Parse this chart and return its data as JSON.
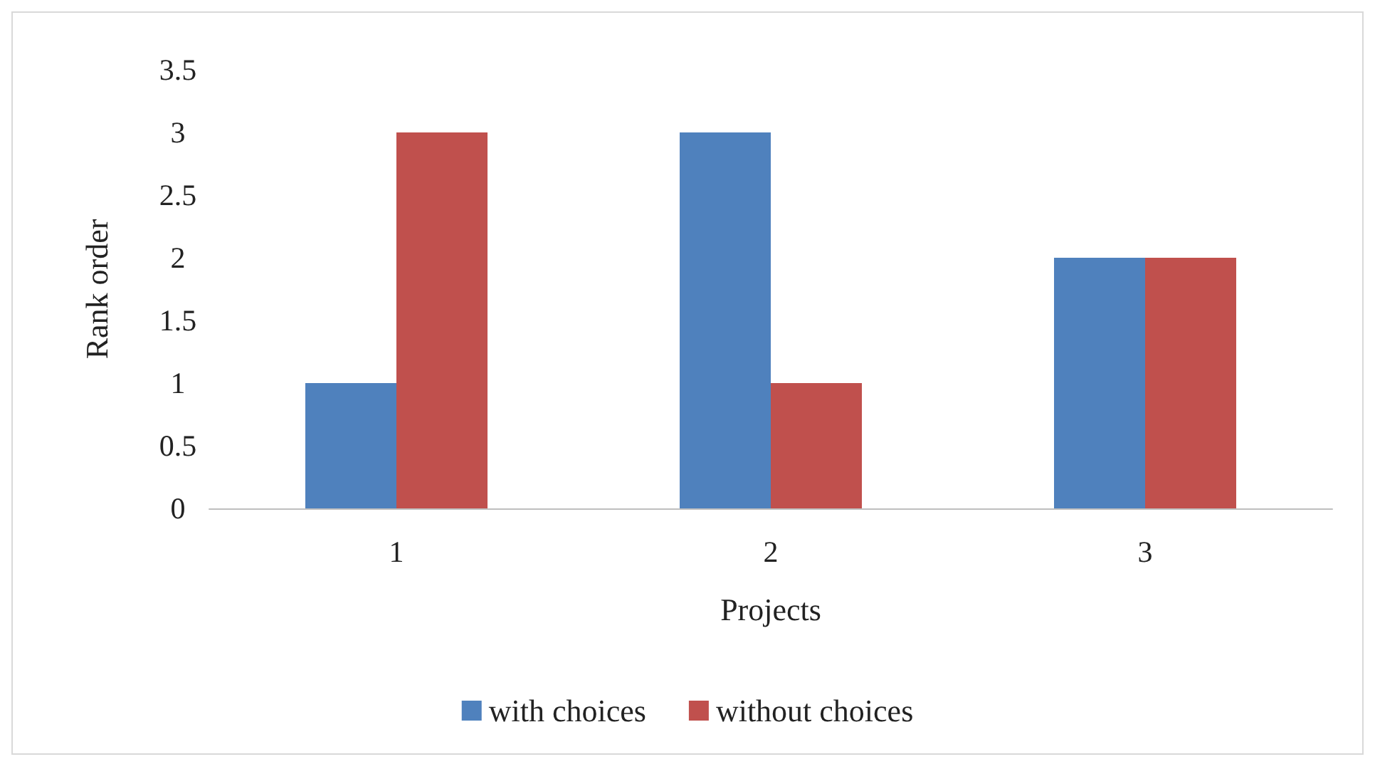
{
  "chart_data": {
    "type": "bar",
    "xlabel": "Projects",
    "ylabel": "Rank order",
    "categories": [
      "1",
      "2",
      "3"
    ],
    "series": [
      {
        "name": "with choices",
        "color": "#4f81bd",
        "values": [
          1,
          3,
          2
        ]
      },
      {
        "name": "without choices",
        "color": "#c0504d",
        "values": [
          3,
          1,
          2
        ]
      }
    ],
    "ylim": [
      0,
      3.5
    ],
    "yticks": [
      0,
      0.5,
      1,
      1.5,
      2,
      2.5,
      3,
      3.5
    ],
    "grid": false,
    "legend": "bottom"
  }
}
